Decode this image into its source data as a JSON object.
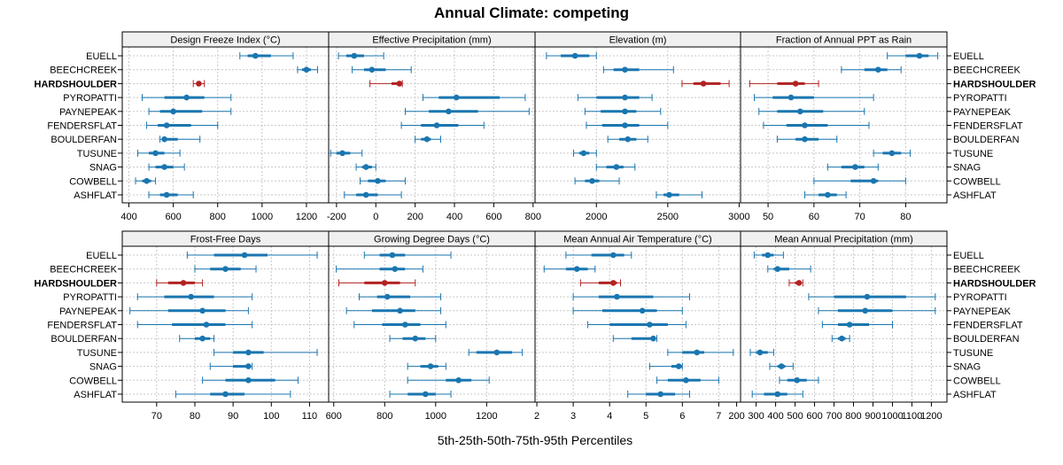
{
  "title": "Annual Climate: competing",
  "xlabel": "5th-25th-50th-75th-95th Percentiles",
  "colors": {
    "normal": "#1a76b0",
    "highlight": "#b22222",
    "grid": "#c8c8c8",
    "strip": "#f0f0f0"
  },
  "sites": [
    "EUELL",
    "BEECHCREEK",
    "HARDSHOULDER",
    "PYROPATTI",
    "PAYNEPEAK",
    "FENDERSFLAT",
    "BOULDERFAN",
    "TUSUNE",
    "SNAG",
    "COWBELL",
    "ASHFLAT"
  ],
  "highlight_site": "HARDSHOULDER",
  "chart_data": [
    {
      "type": "box-percentile",
      "title": "Design Freeze Index (°C)",
      "xlim": [
        370,
        1300
      ],
      "ticks": [
        400,
        600,
        800,
        1000,
        1200
      ],
      "values": [
        [
          900,
          935,
          970,
          1040,
          1140
        ],
        [
          1160,
          1180,
          1200,
          1220,
          1250
        ],
        [
          690,
          705,
          715,
          725,
          740
        ],
        [
          460,
          560,
          660,
          740,
          860
        ],
        [
          490,
          540,
          600,
          730,
          860
        ],
        [
          480,
          530,
          570,
          680,
          800
        ],
        [
          540,
          550,
          560,
          620,
          720
        ],
        [
          440,
          490,
          520,
          560,
          630
        ],
        [
          490,
          520,
          560,
          600,
          650
        ],
        [
          430,
          460,
          480,
          500,
          520
        ],
        [
          490,
          540,
          570,
          620,
          690
        ]
      ]
    },
    {
      "type": "box-percentile",
      "title": "Effective Precipitation (mm)",
      "xlim": [
        -240,
        810
      ],
      "ticks": [
        -200,
        0,
        200,
        400,
        600,
        800
      ],
      "values": [
        [
          -190,
          -150,
          -110,
          -60,
          40
        ],
        [
          -120,
          -60,
          -20,
          50,
          180
        ],
        [
          -30,
          80,
          120,
          130,
          135
        ],
        [
          240,
          320,
          410,
          630,
          760
        ],
        [
          150,
          270,
          370,
          520,
          780
        ],
        [
          130,
          230,
          310,
          420,
          550
        ],
        [
          200,
          230,
          260,
          280,
          330
        ],
        [
          -230,
          -200,
          -170,
          -130,
          -70
        ],
        [
          -100,
          -70,
          -50,
          -20,
          0
        ],
        [
          -80,
          -40,
          10,
          50,
          150
        ],
        [
          -160,
          -100,
          -50,
          10,
          130
        ]
      ]
    },
    {
      "type": "box-percentile",
      "title": "Elevation (m)",
      "xlim": [
        1570,
        3010
      ],
      "ticks": [
        2000,
        2500,
        3000
      ],
      "values": [
        [
          1650,
          1750,
          1850,
          1950,
          2000
        ],
        [
          2050,
          2120,
          2200,
          2300,
          2540
        ],
        [
          2600,
          2680,
          2750,
          2870,
          2930
        ],
        [
          1870,
          2000,
          2200,
          2300,
          2390
        ],
        [
          1920,
          2030,
          2200,
          2280,
          2450
        ],
        [
          1930,
          2040,
          2200,
          2300,
          2500
        ],
        [
          2080,
          2160,
          2220,
          2280,
          2360
        ],
        [
          1840,
          1880,
          1910,
          1950,
          2000
        ],
        [
          2000,
          2070,
          2140,
          2190,
          2270
        ],
        [
          1850,
          1920,
          1970,
          2020,
          2160
        ],
        [
          2420,
          2470,
          2510,
          2580,
          2740
        ]
      ]
    },
    {
      "type": "box-percentile",
      "title": "Fraction of Annual PPT as Rain",
      "xlim": [
        44,
        89
      ],
      "ticks": [
        50,
        60,
        70,
        80
      ],
      "values": [
        [
          76,
          80,
          83,
          85,
          87
        ],
        [
          66,
          71,
          74,
          76,
          79
        ],
        [
          46,
          52,
          56,
          58,
          61
        ],
        [
          47,
          51,
          55,
          60,
          73
        ],
        [
          48,
          52,
          57,
          62,
          71
        ],
        [
          49,
          54,
          58,
          63,
          72
        ],
        [
          52,
          56,
          58,
          61,
          65
        ],
        [
          73,
          75,
          77,
          79,
          81
        ],
        [
          63,
          66,
          69,
          71,
          74
        ],
        [
          60,
          68,
          73,
          74,
          80
        ],
        [
          58,
          61,
          63,
          65,
          67
        ]
      ]
    },
    {
      "type": "box-percentile",
      "title": "Frost-Free Days",
      "xlim": [
        61,
        115
      ],
      "ticks": [
        70,
        80,
        90,
        100,
        110
      ],
      "values": [
        [
          78,
          85,
          93,
          99,
          112
        ],
        [
          80,
          84,
          88,
          92,
          96
        ],
        [
          70,
          73,
          77,
          80,
          82
        ],
        [
          65,
          72,
          79,
          85,
          95
        ],
        [
          63,
          73,
          82,
          88,
          94
        ],
        [
          65,
          74,
          83,
          88,
          95
        ],
        [
          76,
          80,
          82,
          84,
          85
        ],
        [
          85,
          90,
          94,
          98,
          112
        ],
        [
          84,
          90,
          94,
          94,
          95
        ],
        [
          82,
          88,
          94,
          101,
          107
        ],
        [
          75,
          84,
          88,
          93,
          105
        ]
      ]
    },
    {
      "type": "box-percentile",
      "title": "Growing Degree Days (°C)",
      "xlim": [
        580,
        1390
      ],
      "ticks": [
        600,
        800,
        1000,
        1200
      ],
      "values": [
        [
          720,
          780,
          830,
          880,
          1060
        ],
        [
          610,
          780,
          840,
          880,
          950
        ],
        [
          620,
          720,
          800,
          860,
          920
        ],
        [
          700,
          770,
          810,
          900,
          1020
        ],
        [
          650,
          750,
          860,
          920,
          1020
        ],
        [
          680,
          790,
          880,
          940,
          1040
        ],
        [
          820,
          870,
          920,
          960,
          1000
        ],
        [
          1130,
          1160,
          1240,
          1300,
          1340
        ],
        [
          890,
          940,
          980,
          1010,
          1040
        ],
        [
          890,
          1040,
          1090,
          1140,
          1210
        ],
        [
          820,
          890,
          960,
          1000,
          1060
        ]
      ]
    },
    {
      "type": "box-percentile",
      "title": "Mean Annual Air Temperature (°C)",
      "xlim": [
        1.95,
        7.6
      ],
      "ticks": [
        2,
        3,
        4,
        5,
        6,
        7
      ],
      "values": [
        [
          2.8,
          3.5,
          4.1,
          4.4,
          4.6
        ],
        [
          2.2,
          2.8,
          3.1,
          3.4,
          3.6
        ],
        [
          3.2,
          3.7,
          4.1,
          4.2,
          4.3
        ],
        [
          3.0,
          3.7,
          4.2,
          5.2,
          6.2
        ],
        [
          3.0,
          3.8,
          4.9,
          5.3,
          6.0
        ],
        [
          3.4,
          4.0,
          5.1,
          5.6,
          6.1
        ],
        [
          4.1,
          4.6,
          5.2,
          5.2,
          5.3
        ],
        [
          5.6,
          6.0,
          6.4,
          6.6,
          7.4
        ],
        [
          5.1,
          5.7,
          5.9,
          6.0,
          6.0
        ],
        [
          5.3,
          5.6,
          6.1,
          6.5,
          7.0
        ],
        [
          4.5,
          5.0,
          5.4,
          5.8,
          6.2
        ]
      ]
    },
    {
      "type": "box-percentile",
      "title": "Mean Annual Precipitation (mm)",
      "xlim": [
        220,
        1280
      ],
      "ticks": [
        200,
        300,
        400,
        500,
        600,
        700,
        800,
        900,
        1000,
        1100,
        1200
      ],
      "values": [
        [
          290,
          330,
          360,
          390,
          440
        ],
        [
          360,
          390,
          410,
          470,
          580
        ],
        [
          470,
          500,
          520,
          530,
          540
        ],
        [
          570,
          700,
          870,
          1070,
          1220
        ],
        [
          620,
          720,
          860,
          1000,
          1220
        ],
        [
          640,
          720,
          780,
          880,
          1000
        ],
        [
          690,
          720,
          740,
          760,
          780
        ],
        [
          270,
          300,
          320,
          360,
          390
        ],
        [
          370,
          410,
          430,
          450,
          490
        ],
        [
          420,
          460,
          510,
          560,
          620
        ],
        [
          280,
          340,
          410,
          460,
          540
        ]
      ]
    }
  ]
}
